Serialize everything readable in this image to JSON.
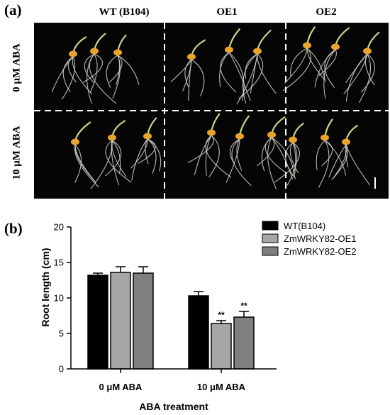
{
  "panel_a": {
    "label": "(a)",
    "columns": [
      "WT (B104)",
      "OE1",
      "OE2"
    ],
    "rows": [
      "0 μM ABA",
      "10 μM ABA"
    ]
  },
  "panel_b": {
    "label": "(b)"
  },
  "chart_data": {
    "type": "bar",
    "categories": [
      "0 μM ABA",
      "10 μM ABA"
    ],
    "series": [
      {
        "name": "WT(B104)",
        "color": "#000000",
        "values": [
          13.2,
          10.3
        ],
        "errors": [
          0.3,
          0.6
        ],
        "significance": [
          "",
          ""
        ]
      },
      {
        "name": "ZmWRKY82-OE1",
        "color": "#a6a6a6",
        "values": [
          13.6,
          6.4
        ],
        "errors": [
          0.8,
          0.4
        ],
        "significance": [
          "",
          "**"
        ]
      },
      {
        "name": "ZmWRKY82-OE2",
        "color": "#7f7f7f",
        "values": [
          13.5,
          7.3
        ],
        "errors": [
          0.9,
          0.8
        ],
        "significance": [
          "",
          "**"
        ]
      }
    ],
    "xlabel": "ABA treatment",
    "ylabel": "Root length (cm)",
    "ylim": [
      0,
      20
    ],
    "yticks": [
      0,
      5,
      10,
      15,
      20
    ],
    "grid": false,
    "legend": "top-right"
  }
}
